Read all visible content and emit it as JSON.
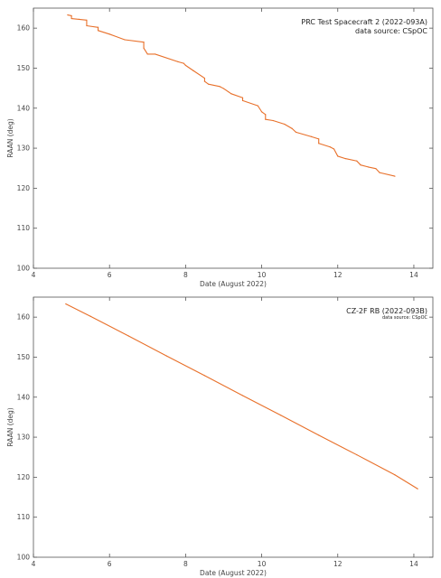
{
  "chart_data": [
    {
      "type": "line",
      "title": "PRC Test Spacecraft 2  (2022-093A)",
      "subtitle": "data source:  CSpOC",
      "xlabel": "Date (August 2022)",
      "ylabel": "RAAN (deg)",
      "xlim": [
        4,
        14.5
      ],
      "ylim": [
        100,
        165
      ],
      "xticks": [
        4,
        6,
        8,
        10,
        12,
        14
      ],
      "yticks": [
        100,
        110,
        120,
        130,
        140,
        150,
        160
      ],
      "color": "#e8702a",
      "series": [
        {
          "x": [
            4.9,
            5.0,
            5.0,
            5.2,
            5.4,
            5.4,
            5.7,
            5.7,
            6.0,
            6.4,
            6.9,
            6.9,
            7.0,
            7.2,
            7.8,
            7.95,
            8.0,
            8.2,
            8.5,
            8.5,
            8.6,
            8.9,
            9.0,
            9.2,
            9.5,
            9.5,
            9.9,
            10.0,
            10.1,
            10.1,
            10.3,
            10.6,
            10.8,
            10.9,
            11.3,
            11.5,
            11.5,
            11.8,
            11.9,
            12.0,
            12.2,
            12.5,
            12.6,
            12.8,
            13.0,
            13.1,
            13.5
          ],
          "y": [
            163.3,
            163.1,
            162.4,
            162.2,
            162.0,
            160.6,
            160.2,
            159.4,
            158.5,
            157.1,
            156.5,
            155.0,
            153.5,
            153.5,
            151.6,
            151.2,
            150.7,
            149.4,
            147.5,
            146.7,
            146.0,
            145.4,
            144.9,
            143.6,
            142.6,
            141.9,
            140.6,
            139.1,
            138.4,
            137.2,
            136.9,
            136.0,
            134.9,
            134.0,
            132.9,
            132.3,
            131.2,
            130.3,
            129.8,
            128.0,
            127.4,
            126.8,
            125.8,
            125.3,
            124.9,
            123.9,
            123.0
          ]
        }
      ]
    },
    {
      "type": "line",
      "title": "CZ-2F RB  (2022-093B)",
      "subtitle": "data source: CSpOC",
      "xlabel": "Date (August 2022)",
      "ylabel": "RAAN (deg)",
      "xlim": [
        4,
        14.5
      ],
      "ylim": [
        100,
        165
      ],
      "xticks": [
        4,
        6,
        8,
        10,
        12,
        14
      ],
      "yticks": [
        100,
        110,
        120,
        130,
        140,
        150,
        160
      ],
      "color": "#e8702a",
      "series": [
        {
          "x": [
            4.85,
            5.5,
            6.5,
            7.5,
            8.5,
            9.5,
            10.5,
            11.5,
            12.5,
            13.5,
            14.1
          ],
          "y": [
            163.3,
            160.2,
            155.3,
            150.3,
            145.4,
            140.4,
            135.5,
            130.5,
            125.6,
            120.6,
            117.1
          ]
        }
      ]
    }
  ]
}
